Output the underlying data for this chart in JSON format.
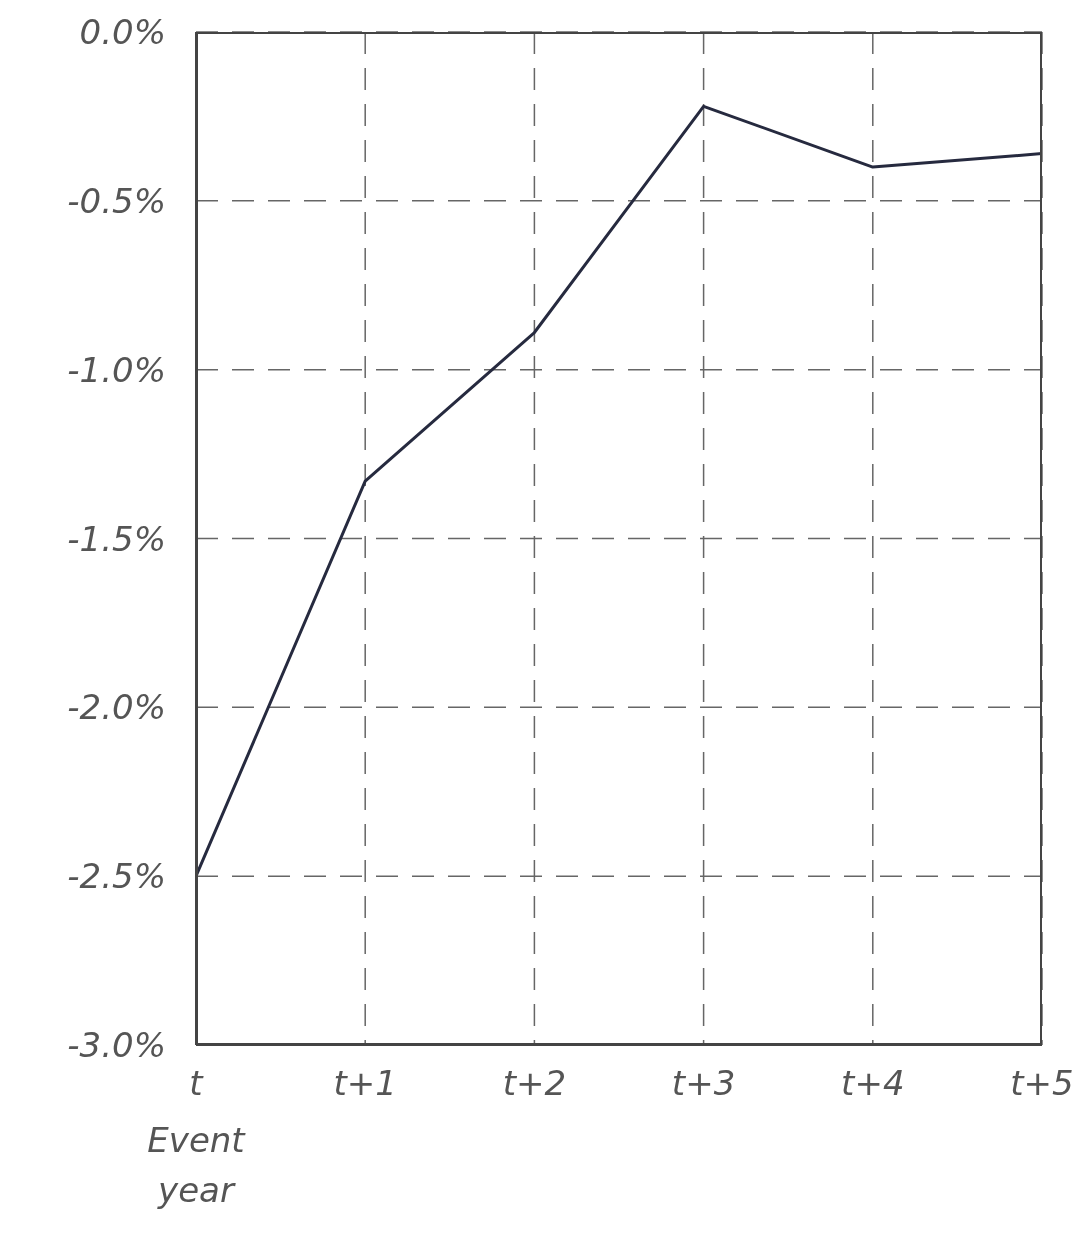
{
  "chart_data": {
    "type": "line",
    "categories": [
      "t",
      "t+1",
      "t+2",
      "t+3",
      "t+4",
      "t+5"
    ],
    "series": [
      {
        "color": "#262a3f",
        "values": [
          -2.5,
          -1.33,
          -0.89,
          -0.22,
          -0.4,
          -0.36
        ]
      }
    ],
    "ylim": [
      -3,
      0
    ],
    "yticks": [
      {
        "value": 0,
        "label": "0.0%"
      },
      {
        "value": -0.5,
        "label": "-0.5%"
      },
      {
        "value": -1,
        "label": "-1.0%"
      },
      {
        "value": -1.5,
        "label": "-1.5%"
      },
      {
        "value": -2,
        "label": "-2.0%"
      },
      {
        "value": -2.5,
        "label": "-2.5%"
      },
      {
        "value": -3,
        "label": "-3.0%"
      }
    ],
    "grid": true,
    "marker": "none",
    "line_style": "solid",
    "annotations": [
      "Event year"
    ]
  }
}
